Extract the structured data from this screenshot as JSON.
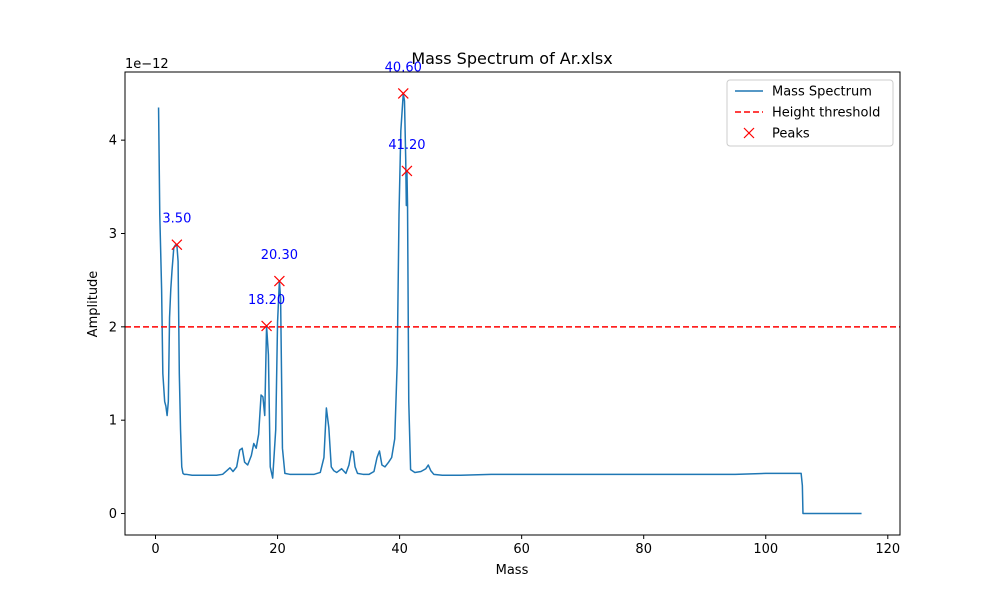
{
  "chart_data": {
    "type": "line",
    "title": "Mass Spectrum of Ar.xlsx",
    "xlabel": "Mass",
    "ylabel": "Amplitude",
    "y_offset_text": "1e−12",
    "xlim": [
      -5,
      122
    ],
    "ylim": [
      -0.23,
      4.73
    ],
    "xticks": [
      0,
      20,
      40,
      60,
      80,
      100,
      120
    ],
    "yticks": [
      0,
      1,
      2,
      3,
      4
    ],
    "legend_position": "top-right",
    "legend": [
      "Mass Spectrum",
      "Height threshold",
      "Peaks"
    ],
    "series": [
      {
        "name": "Mass Spectrum",
        "color": "#1f77b4",
        "x": [
          0.5,
          0.7,
          1.0,
          1.2,
          1.5,
          1.7,
          1.9,
          2.1,
          2.3,
          2.5,
          2.7,
          3.0,
          3.3,
          3.5,
          3.7,
          3.9,
          4.1,
          4.3,
          4.5,
          4.7,
          5.0,
          6.0,
          7.0,
          8.0,
          9.0,
          10.0,
          11.0,
          11.7,
          12.2,
          12.7,
          13.3,
          13.8,
          14.2,
          14.6,
          15.1,
          15.7,
          16.1,
          16.5,
          16.9,
          17.3,
          17.6,
          17.9,
          18.2,
          18.5,
          18.8,
          19.2,
          19.7,
          20.0,
          20.3,
          20.5,
          20.8,
          21.2,
          22.0,
          24.0,
          26.0,
          27.0,
          27.6,
          28.0,
          28.4,
          28.8,
          29.2,
          29.7,
          30.5,
          31.2,
          31.7,
          32.1,
          32.4,
          32.7,
          33.1,
          34.0,
          35.0,
          35.8,
          36.3,
          36.7,
          37.1,
          37.6,
          38.2,
          38.7,
          39.2,
          39.6,
          39.9,
          40.2,
          40.6,
          40.8,
          41.0,
          41.1,
          41.2,
          41.3,
          41.5,
          41.8,
          42.5,
          43.5,
          44.3,
          44.7,
          45.1,
          45.6,
          47.0,
          50.0,
          55.0,
          60.0,
          65.0,
          70.0,
          75.0,
          80.0,
          85.0,
          90.0,
          95.0,
          100.0,
          103.0,
          105.8,
          106.0,
          106.1,
          110.0,
          115.7
        ],
        "values": [
          4.35,
          3.2,
          2.4,
          1.5,
          1.2,
          1.15,
          1.05,
          1.2,
          2.1,
          2.4,
          2.6,
          2.85,
          2.88,
          2.88,
          2.7,
          1.5,
          0.9,
          0.5,
          0.43,
          0.42,
          0.42,
          0.41,
          0.41,
          0.41,
          0.41,
          0.41,
          0.42,
          0.46,
          0.49,
          0.45,
          0.5,
          0.68,
          0.7,
          0.55,
          0.52,
          0.62,
          0.75,
          0.7,
          0.85,
          1.27,
          1.25,
          1.05,
          2.01,
          1.7,
          0.5,
          0.38,
          0.9,
          2.05,
          2.49,
          2.3,
          0.7,
          0.43,
          0.42,
          0.42,
          0.42,
          0.44,
          0.6,
          1.13,
          0.92,
          0.5,
          0.46,
          0.44,
          0.48,
          0.43,
          0.52,
          0.67,
          0.66,
          0.5,
          0.43,
          0.42,
          0.42,
          0.45,
          0.6,
          0.67,
          0.52,
          0.5,
          0.55,
          0.6,
          0.8,
          1.6,
          3.2,
          4.1,
          4.5,
          4.42,
          3.8,
          3.3,
          3.67,
          3.3,
          1.2,
          0.47,
          0.44,
          0.45,
          0.48,
          0.52,
          0.46,
          0.42,
          0.41,
          0.41,
          0.42,
          0.42,
          0.42,
          0.42,
          0.42,
          0.42,
          0.42,
          0.42,
          0.42,
          0.43,
          0.43,
          0.43,
          0.3,
          0.0,
          0.0,
          0.0
        ]
      }
    ],
    "threshold": {
      "name": "Height threshold",
      "y": 2.0,
      "color": "#ff0000"
    },
    "peaks": {
      "name": "Peaks",
      "color": "#ff0000",
      "points": [
        {
          "x": 3.5,
          "y": 2.88,
          "label": "3.50"
        },
        {
          "x": 18.2,
          "y": 2.01,
          "label": "18.20"
        },
        {
          "x": 20.3,
          "y": 2.49,
          "label": "20.30"
        },
        {
          "x": 40.6,
          "y": 4.5,
          "label": "40.60"
        },
        {
          "x": 41.2,
          "y": 3.67,
          "label": "41.20"
        }
      ]
    }
  }
}
